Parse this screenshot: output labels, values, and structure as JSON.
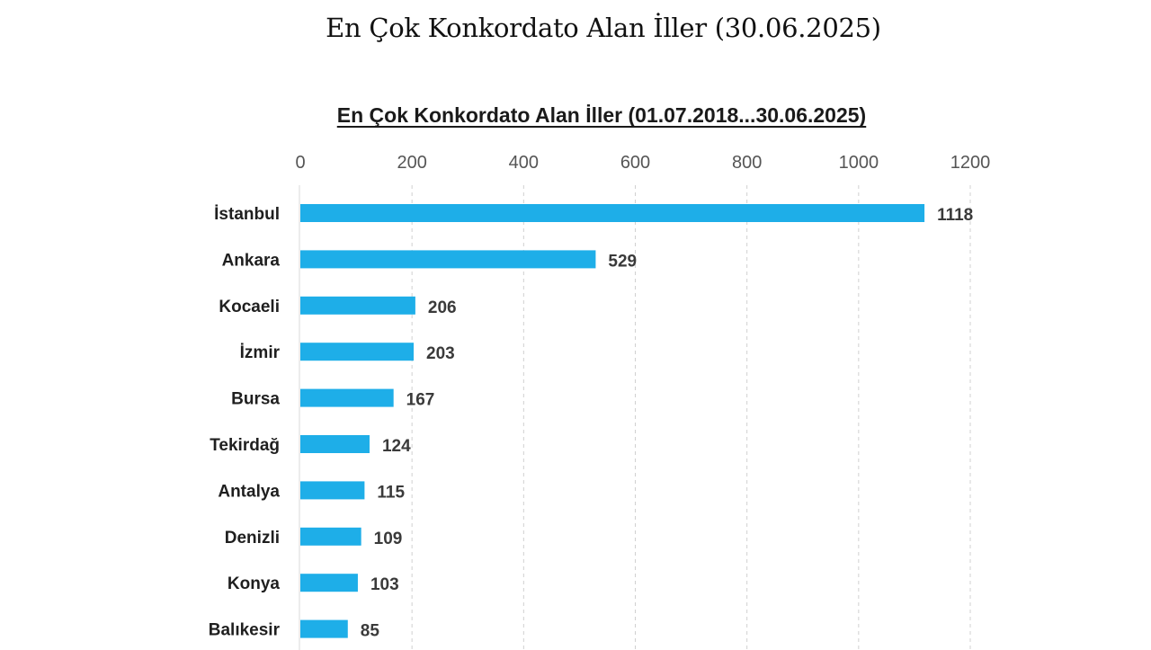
{
  "page_title": "En Çok Konkordato Alan İller (30.06.2025)",
  "chart_data": {
    "type": "bar",
    "orientation": "horizontal",
    "title": "En Çok Konkordato Alan İller (01.07.2018...30.06.2025)",
    "categories": [
      "İstanbul",
      "Ankara",
      "Kocaeli",
      "İzmir",
      "Bursa",
      "Tekirdağ",
      "Antalya",
      "Denizli",
      "Konya",
      "Balıkesir"
    ],
    "values": [
      1118,
      529,
      206,
      203,
      167,
      124,
      115,
      109,
      103,
      85
    ],
    "xlim": [
      0,
      1200
    ],
    "x_ticks": [
      0,
      200,
      400,
      600,
      800,
      1000,
      1200
    ],
    "x_axis_position": "top",
    "grid": true,
    "legend": "none",
    "bar_color": "#1eaee8"
  }
}
